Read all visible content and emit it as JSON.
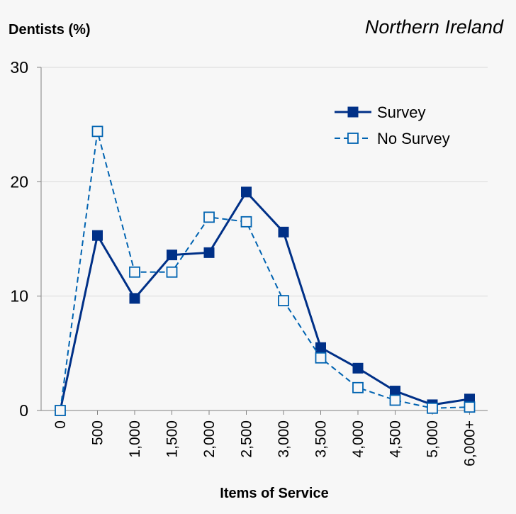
{
  "chart_data": {
    "type": "line",
    "title": "Northern Ireland",
    "ylabel": "Dentists (%)",
    "xlabel": "Items of Service",
    "categories": [
      "0",
      "500",
      "1,000",
      "1,500",
      "2,000",
      "2,500",
      "3,000",
      "3,500",
      "4,000",
      "4,500",
      "5,000",
      "6,000+"
    ],
    "ylim": [
      0,
      30
    ],
    "yticks": [
      "0",
      "10",
      "20",
      "30"
    ],
    "grid": true,
    "legend_position": "top-right",
    "series": [
      {
        "name": "Survey",
        "values": [
          0,
          15.3,
          9.8,
          13.6,
          13.8,
          19.1,
          15.6,
          5.5,
          3.7,
          1.7,
          0.5,
          1.0
        ],
        "color": "#003087",
        "line_style": "solid",
        "marker": "filled-square"
      },
      {
        "name": "No Survey",
        "values": [
          0,
          24.4,
          12.1,
          12.1,
          16.9,
          16.5,
          9.6,
          4.6,
          2.0,
          0.9,
          0.2,
          0.3
        ],
        "color": "#0063b1",
        "line_style": "dashed",
        "marker": "open-square"
      }
    ]
  }
}
